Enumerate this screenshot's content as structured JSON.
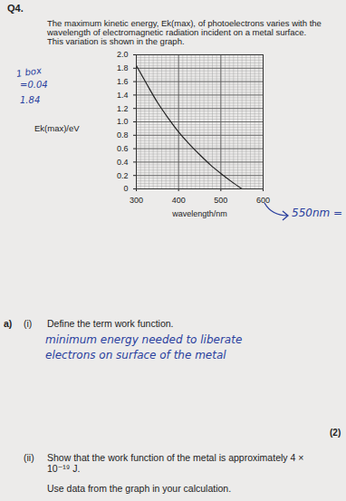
{
  "header": {
    "number": "Q4.",
    "lines": [
      "The maximum kinetic energy, Ek(max), of photoelectrons varies with the",
      "wavelength of electromagnetic radiation incident on a metal surface.",
      "This variation is shown in the graph."
    ]
  },
  "chart_data": {
    "type": "line",
    "x_label": "wavelength/nm",
    "y_label": "Ek(max)/eV",
    "x": [
      300,
      325,
      350,
      375,
      400,
      425,
      450,
      475,
      500,
      525,
      550
    ],
    "values": [
      1.84,
      1.56,
      1.29,
      1.06,
      0.85,
      0.67,
      0.51,
      0.36,
      0.23,
      0.11,
      0.0
    ],
    "color": "#222222",
    "xlim": [
      300,
      600
    ],
    "xticks": [
      300,
      400,
      500,
      600
    ],
    "ylim": [
      0,
      2.0
    ],
    "yticks": [
      0,
      0.2,
      0.4,
      0.6,
      0.8,
      {
        "value": 1.0,
        "label": "1.0"
      },
      1.2,
      1.4,
      1.6,
      1.8,
      {
        "value": 2.0,
        "label": "2.0"
      }
    ],
    "grid": true
  },
  "annotations": {
    "box": [
      "1 box",
      "=0.04"
    ],
    "reading": "1.84",
    "threshold": "550nm ="
  },
  "questions": [
    {
      "label": "a)",
      "sub": "(i)",
      "text": "Define the term work function.",
      "answer": [
        "minimum energy needed to liberate",
        "electrons on surface of the metal"
      ],
      "marks": "(2)"
    },
    {
      "sub": "(ii)",
      "lines": [
        "Show that the work function of the metal is approximately 4 ×",
        "10⁻¹⁹ J."
      ],
      "note": "Use data from the graph in your calculation."
    }
  ]
}
